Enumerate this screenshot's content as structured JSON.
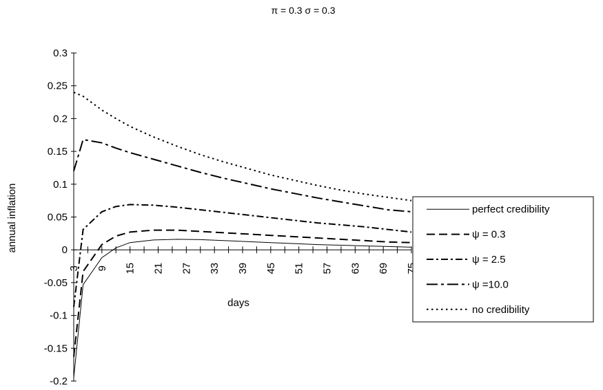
{
  "chart_data": {
    "type": "line",
    "title": "π = 0.3   σ = 0.3",
    "xlabel": "days",
    "ylabel": "annual inflation",
    "ylim": [
      -0.2,
      0.3
    ],
    "xlim": [
      3,
      75
    ],
    "y_ticks": [
      -0.2,
      -0.15,
      -0.1,
      -0.05,
      0,
      0.05,
      0.1,
      0.15,
      0.2,
      0.25,
      0.3
    ],
    "y_tick_labels": [
      "-0.2",
      "-0.15",
      "-0.1",
      "-0.05",
      "0",
      "0.05",
      "0.1",
      "0.15",
      "0.2",
      "0.25",
      "0.3"
    ],
    "x_ticks": [
      3,
      9,
      15,
      21,
      27,
      33,
      39,
      45,
      51,
      57,
      63,
      69,
      75
    ],
    "x_tick_labels": [
      "3",
      "9",
      "15",
      "21",
      "27",
      "33",
      "39",
      "45",
      "51",
      "57",
      "63",
      "69",
      "75"
    ],
    "grid": false,
    "legend_position": "right",
    "series": [
      {
        "name": "perfect credibility",
        "style": "solid",
        "x": [
          3,
          5,
          9,
          12,
          15,
          20,
          25,
          30,
          35,
          40,
          45,
          50,
          55,
          60,
          65,
          70,
          75
        ],
        "y": [
          -0.195,
          -0.053,
          -0.012,
          0.003,
          0.011,
          0.015,
          0.016,
          0.0155,
          0.014,
          0.0125,
          0.011,
          0.0095,
          0.008,
          0.007,
          0.006,
          0.005,
          0.004
        ]
      },
      {
        "name": "ψ = 0.3",
        "style": "dash",
        "x": [
          3,
          5,
          9,
          12,
          15,
          20,
          25,
          30,
          35,
          40,
          45,
          50,
          55,
          60,
          65,
          70,
          75
        ],
        "y": [
          -0.163,
          -0.033,
          0.008,
          0.021,
          0.027,
          0.03,
          0.03,
          0.028,
          0.026,
          0.024,
          0.022,
          0.02,
          0.018,
          0.016,
          0.014,
          0.012,
          0.011
        ]
      },
      {
        "name": "ψ = 2.5",
        "style": "dashdot",
        "x": [
          3,
          5,
          9,
          12,
          15,
          20,
          25,
          30,
          35,
          40,
          45,
          50,
          55,
          60,
          65,
          70,
          75
        ],
        "y": [
          -0.087,
          0.031,
          0.058,
          0.066,
          0.069,
          0.068,
          0.065,
          0.061,
          0.057,
          0.053,
          0.049,
          0.045,
          0.041,
          0.038,
          0.035,
          0.031,
          0.027
        ]
      },
      {
        "name": "ψ =10.0",
        "style": "longdashdot",
        "x": [
          3,
          5,
          9,
          12,
          15,
          20,
          25,
          30,
          35,
          40,
          45,
          50,
          55,
          60,
          65,
          70,
          75
        ],
        "y": [
          0.12,
          0.168,
          0.163,
          0.155,
          0.148,
          0.138,
          0.128,
          0.118,
          0.109,
          0.101,
          0.093,
          0.086,
          0.079,
          0.073,
          0.067,
          0.061,
          0.058
        ]
      },
      {
        "name": "no credibility",
        "style": "dot",
        "x": [
          3,
          5,
          9,
          12,
          15,
          20,
          25,
          30,
          35,
          40,
          45,
          50,
          55,
          60,
          65,
          70,
          75
        ],
        "y": [
          0.24,
          0.234,
          0.213,
          0.2,
          0.188,
          0.172,
          0.158,
          0.145,
          0.134,
          0.124,
          0.114,
          0.106,
          0.098,
          0.091,
          0.085,
          0.08,
          0.075
        ]
      }
    ]
  }
}
